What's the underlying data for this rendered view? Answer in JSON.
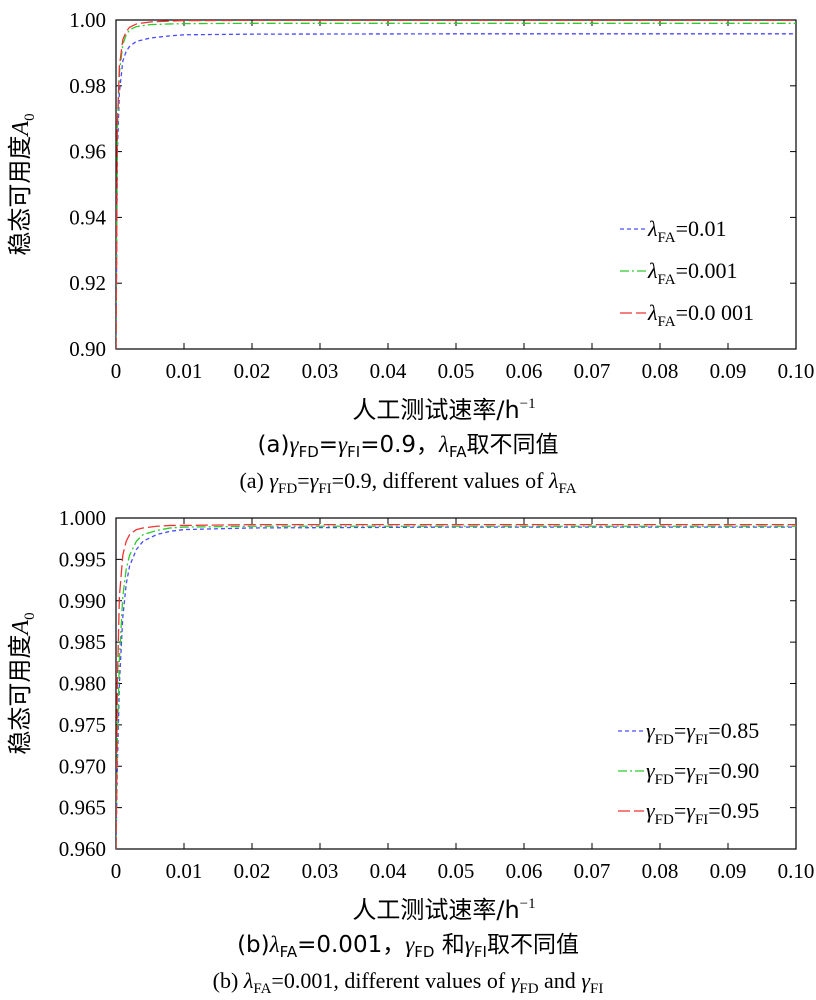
{
  "chart_data": [
    {
      "type": "line",
      "xlabel": "人工测试速率/h",
      "xlabel_sup": "−1",
      "ylabel": "稳态可用度",
      "ylabel_symbol": "A",
      "ylabel_sub": "0",
      "xlim": [
        0,
        0.1
      ],
      "ylim": [
        0.9,
        1.0
      ],
      "xticks": [
        "0",
        "0.01",
        "0.02",
        "0.03",
        "0.04",
        "0.05",
        "0.06",
        "0.07",
        "0.08",
        "0.09",
        "0.10"
      ],
      "yticks": [
        "0.90",
        "0.92",
        "0.94",
        "0.96",
        "0.98",
        "1.00"
      ],
      "grid": false,
      "legend_position": "right",
      "series": [
        {
          "sym": "λ",
          "sub": "FA",
          "value": "=0.01",
          "color": "#4a4aff",
          "dash": "4,3",
          "x": [
            0,
            0.0002,
            0.0005,
            0.001,
            0.0015,
            0.002,
            0.003,
            0.005,
            0.008,
            0.01,
            0.02,
            0.05,
            0.1
          ],
          "y": [
            0.9,
            0.96,
            0.978,
            0.9875,
            0.9905,
            0.992,
            0.9935,
            0.9945,
            0.9952,
            0.9955,
            0.9957,
            0.9958,
            0.9958
          ]
        },
        {
          "sym": "λ",
          "sub": "FA",
          "value": "=0.001",
          "color": "#2ecc2e",
          "dash": "9,3,2,3",
          "x": [
            0,
            0.0002,
            0.0005,
            0.001,
            0.0015,
            0.002,
            0.003,
            0.005,
            0.008,
            0.01,
            0.02,
            0.05,
            0.1
          ],
          "y": [
            0.9,
            0.966,
            0.984,
            0.9925,
            0.9955,
            0.997,
            0.998,
            0.9986,
            0.9988,
            0.9989,
            0.999,
            0.999,
            0.999
          ]
        },
        {
          "sym": "λ",
          "sub": "FA",
          "value": "=0.0 001",
          "color": "#ee3333",
          "dash": "12,4",
          "x": [
            0,
            0.0002,
            0.0005,
            0.001,
            0.0015,
            0.002,
            0.003,
            0.005,
            0.008,
            0.01,
            0.02,
            0.05,
            0.1
          ],
          "y": [
            0.9,
            0.968,
            0.986,
            0.994,
            0.9965,
            0.9978,
            0.9988,
            0.9994,
            0.9997,
            0.9998,
            0.9999,
            0.9999,
            0.9999
          ]
        }
      ],
      "caption_zh": {
        "a": "(a)",
        "g1": "γ",
        "s1": "FD",
        "eq1": "=",
        "g2": "γ",
        "s2": "FI",
        "mid": "=0.9，",
        "g3": "λ",
        "s3": "FA",
        "tail": "取不同值"
      },
      "caption_en": {
        "a": "(a) ",
        "g1": "γ",
        "s1": "FD",
        "eq1": "=",
        "g2": "γ",
        "s2": "FI",
        "mid": "=0.9, different values of ",
        "g3": "λ",
        "s3": "FA",
        "tail": ""
      }
    },
    {
      "type": "line",
      "xlabel": "人工测试速率/h",
      "xlabel_sup": "−1",
      "ylabel": "稳态可用度",
      "ylabel_symbol": "A",
      "ylabel_sub": "0",
      "xlim": [
        0,
        0.1
      ],
      "ylim": [
        0.96,
        1.0
      ],
      "xticks": [
        "0",
        "0.01",
        "0.02",
        "0.03",
        "0.04",
        "0.05",
        "0.06",
        "0.07",
        "0.08",
        "0.09",
        "0.10"
      ],
      "yticks": [
        "0.960",
        "0.965",
        "0.970",
        "0.975",
        "0.980",
        "0.985",
        "0.990",
        "0.995",
        "1.000"
      ],
      "grid": false,
      "legend_position": "right",
      "series": [
        {
          "sym": "γ",
          "sub": "FD",
          "value": "=",
          "sym2": "γ",
          "sub2": "FI",
          "value2": "=0.85",
          "color": "#4a4aff",
          "dash": "4,3",
          "x": [
            0,
            0.0002,
            0.0005,
            0.001,
            0.0015,
            0.002,
            0.003,
            0.004,
            0.006,
            0.008,
            0.01,
            0.02,
            0.05,
            0.1
          ],
          "y": [
            0.96,
            0.97,
            0.98,
            0.988,
            0.992,
            0.9942,
            0.9962,
            0.9972,
            0.998,
            0.9984,
            0.9986,
            0.9988,
            0.9989,
            0.9989
          ]
        },
        {
          "sym": "γ",
          "sub": "FD",
          "value": "=",
          "sym2": "γ",
          "sub2": "FI",
          "value2": "=0.90",
          "color": "#2ecc2e",
          "dash": "9,3,2,3",
          "x": [
            0,
            0.0002,
            0.0005,
            0.001,
            0.0015,
            0.002,
            0.003,
            0.004,
            0.006,
            0.008,
            0.01,
            0.02,
            0.05,
            0.1
          ],
          "y": [
            0.96,
            0.973,
            0.983,
            0.9905,
            0.9938,
            0.9955,
            0.9972,
            0.998,
            0.9985,
            0.9988,
            0.9989,
            0.999,
            0.999,
            0.999
          ]
        },
        {
          "sym": "γ",
          "sub": "FD",
          "value": "=",
          "sym2": "γ",
          "sub2": "FI",
          "value2": "=0.95",
          "color": "#ee3333",
          "dash": "12,4",
          "x": [
            0,
            0.0002,
            0.0005,
            0.001,
            0.0015,
            0.002,
            0.003,
            0.004,
            0.006,
            0.008,
            0.01,
            0.02,
            0.05,
            0.1
          ],
          "y": [
            0.96,
            0.98,
            0.9905,
            0.9955,
            0.9972,
            0.998,
            0.9986,
            0.9988,
            0.999,
            0.9991,
            0.9991,
            0.9992,
            0.9992,
            0.9992
          ]
        }
      ],
      "caption_zh": {
        "a": "(b)",
        "g1": "λ",
        "s1": "FA",
        "eq1": "=0.001，",
        "g2": "γ",
        "s2": "FD",
        "mid": " 和",
        "g3": "γ",
        "s3": "FI",
        "tail": "取不同值"
      },
      "caption_en": {
        "a": "(b) ",
        "g1": "λ",
        "s1": "FA",
        "eq1": "=0.001, different values of ",
        "g2": "γ",
        "s2": "FD",
        "mid": " and ",
        "g3": "γ",
        "s3": "FI",
        "tail": ""
      }
    }
  ]
}
